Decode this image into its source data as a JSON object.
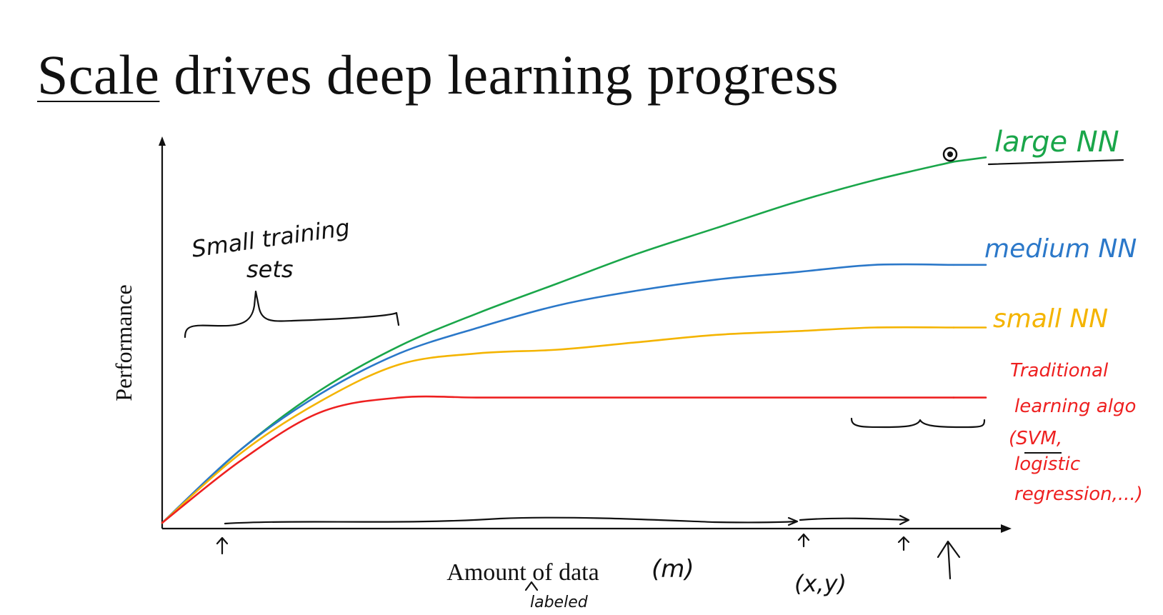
{
  "title": {
    "underlined_word": "Scale",
    "rest": " drives deep learning progress"
  },
  "chart_data": {
    "type": "line",
    "title": "Scale drives deep learning progress",
    "xlabel": "Amount of data",
    "ylabel": "Performance",
    "x_range": [
      0,
      1
    ],
    "y_range": [
      0,
      1
    ],
    "grid": false,
    "legend": "labels at right end of each line",
    "x": [
      0,
      0.1,
      0.2,
      0.3,
      0.4,
      0.5,
      0.6,
      0.7,
      0.8,
      0.9,
      1.0
    ],
    "series": [
      {
        "name": "large NN",
        "color": "#1aa64a",
        "values": [
          0.0,
          0.2,
          0.36,
          0.48,
          0.57,
          0.65,
          0.73,
          0.8,
          0.87,
          0.93,
          0.98
        ]
      },
      {
        "name": "medium NN",
        "color": "#2b78c9",
        "values": [
          0.0,
          0.2,
          0.35,
          0.46,
          0.53,
          0.59,
          0.63,
          0.66,
          0.68,
          0.7,
          0.7
        ]
      },
      {
        "name": "small NN",
        "color": "#f4b400",
        "values": [
          0.0,
          0.19,
          0.33,
          0.43,
          0.46,
          0.47,
          0.49,
          0.51,
          0.52,
          0.53,
          0.53
        ]
      },
      {
        "name": "Traditional learning algo (SVM, logistic regression,...)",
        "color": "#ee2020",
        "values": [
          0.0,
          0.17,
          0.3,
          0.34,
          0.34,
          0.34,
          0.34,
          0.34,
          0.34,
          0.34,
          0.34
        ]
      }
    ],
    "annotations": {
      "small_training_sets": [
        "Small training",
        "sets"
      ],
      "labeled": "labeled",
      "m": "(m)",
      "xy": "(x,y)"
    }
  },
  "labels": {
    "large": "large NN",
    "medium": "medium NN",
    "small": "small NN",
    "traditional": [
      "Traditional",
      "learning algo",
      "(SVM,",
      "logistic",
      "regression,...)"
    ]
  },
  "colors": {
    "axis": "#111111",
    "ink": "#111111"
  }
}
